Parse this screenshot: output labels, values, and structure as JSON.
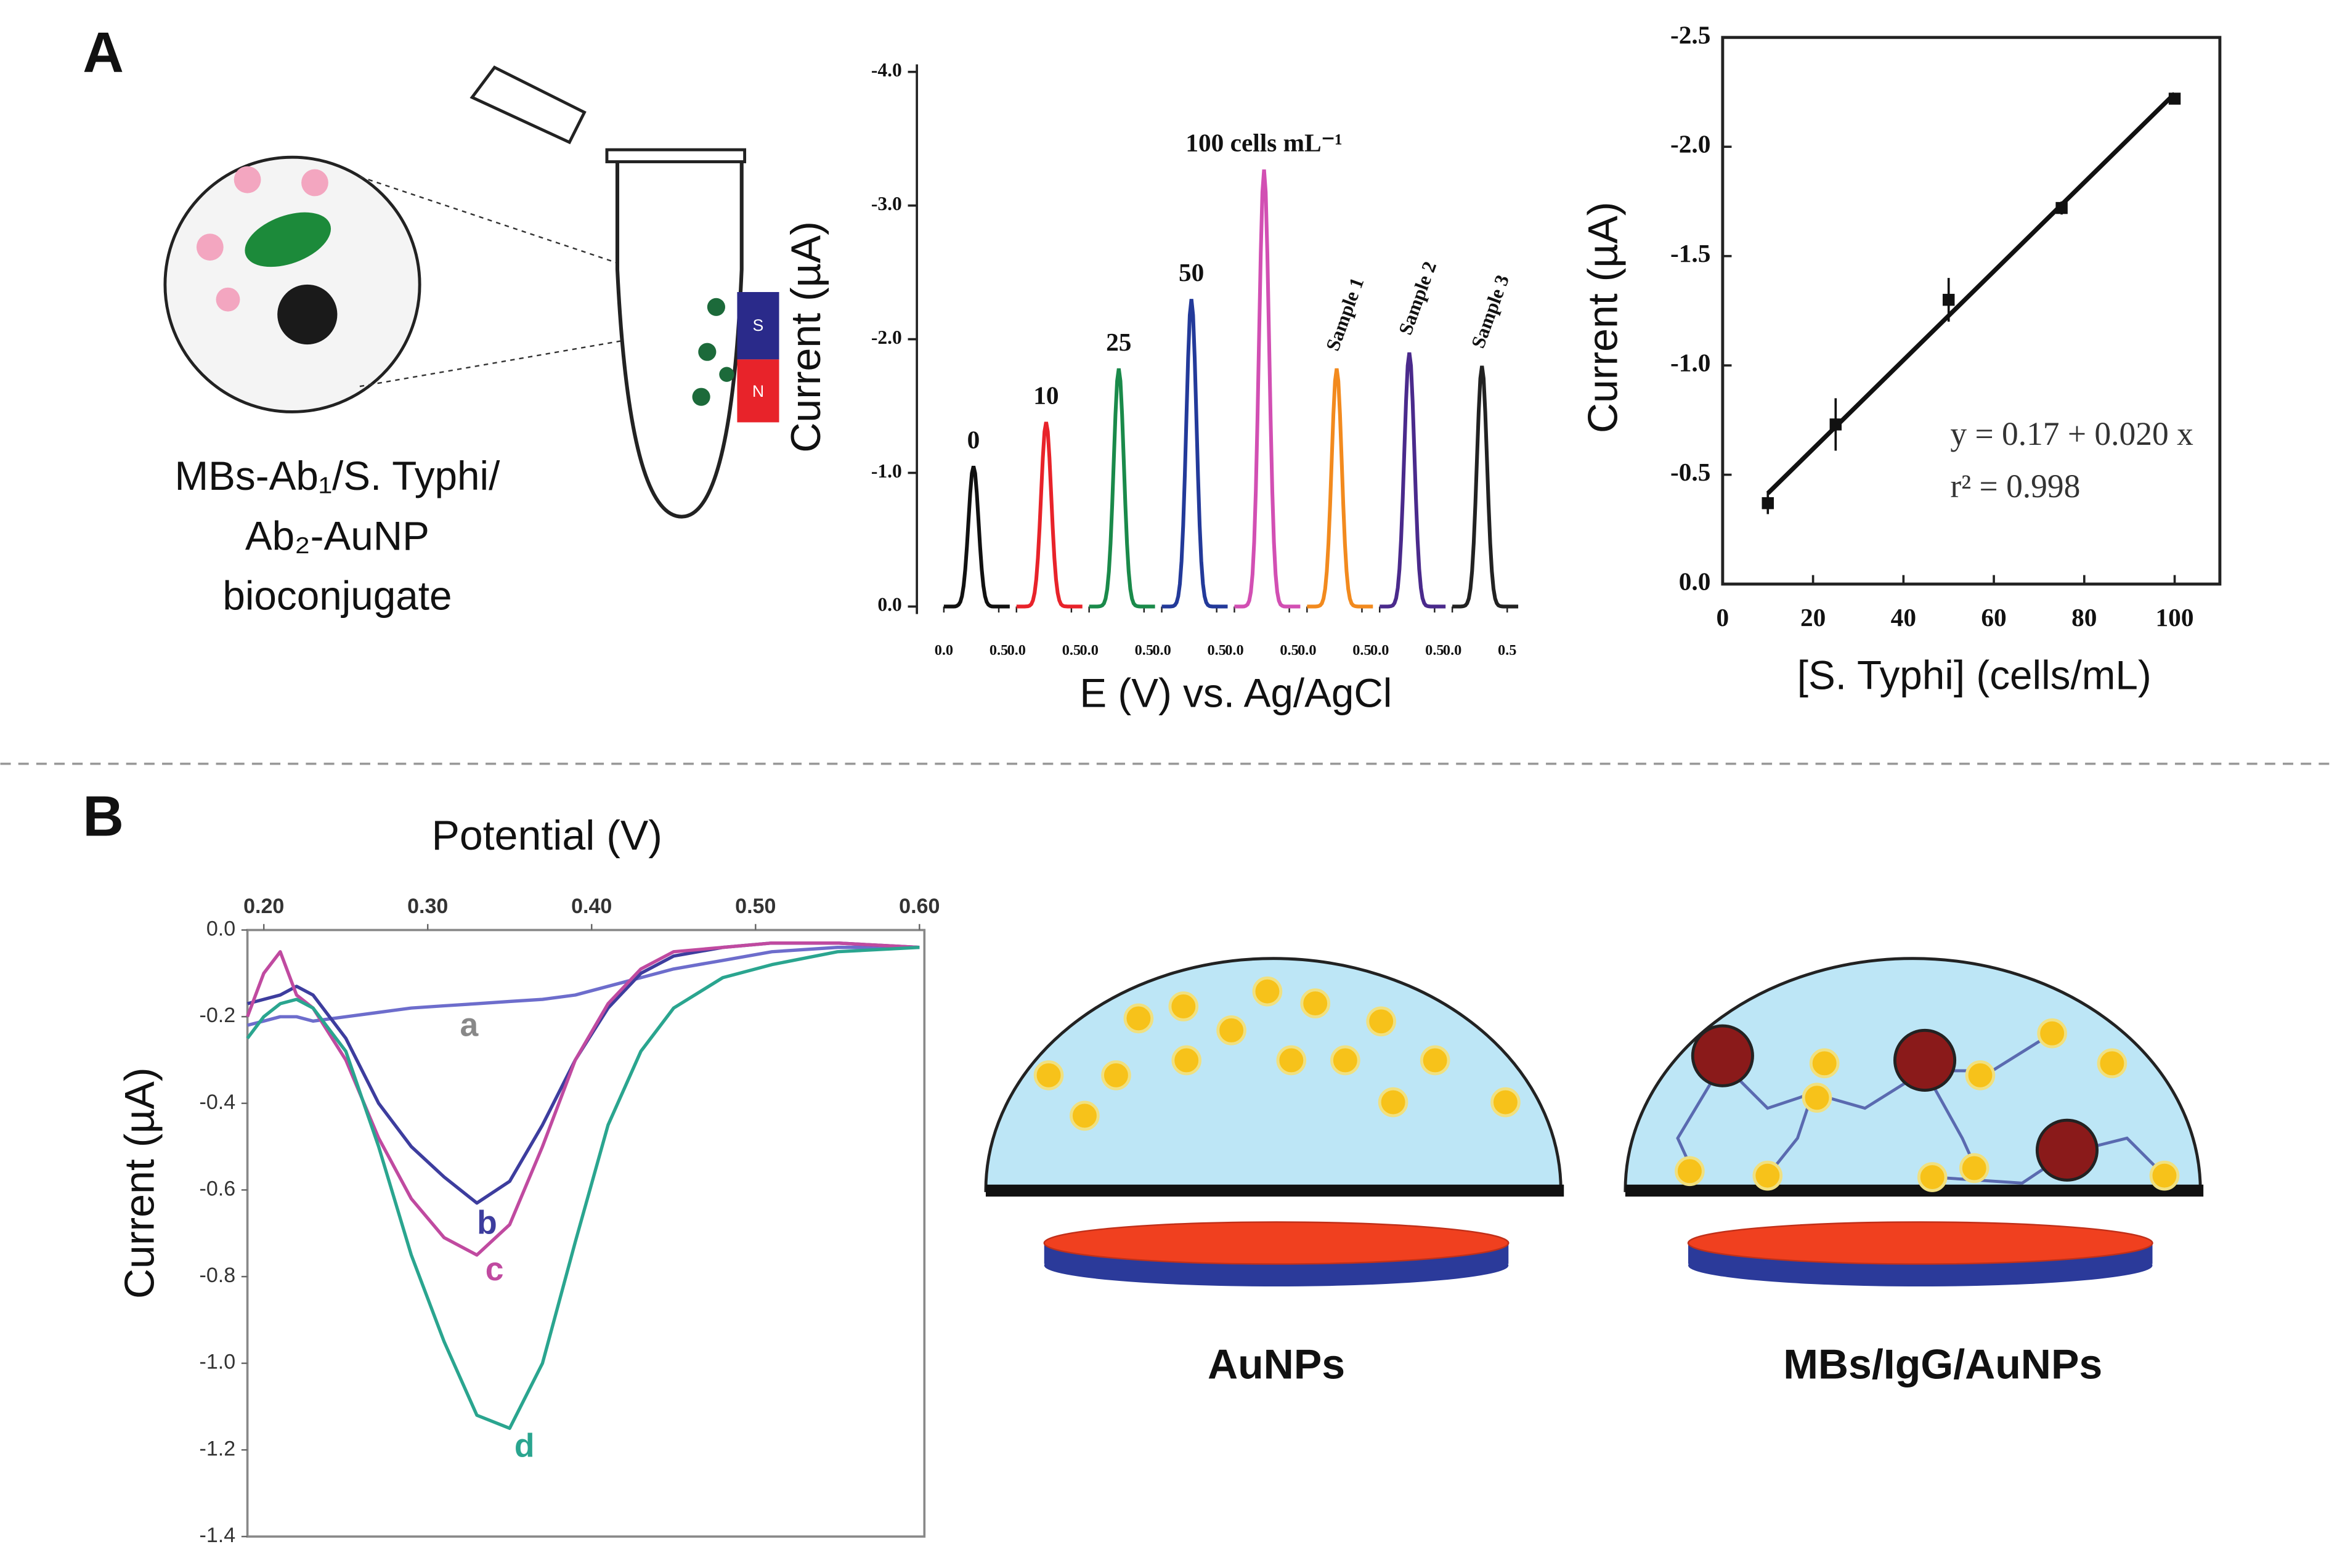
{
  "panel_labels": [
    "A",
    "B"
  ],
  "diagram_a": {
    "caption": [
      "MBs-Ab₁/S. Typhi/",
      "Ab₂-AuNP",
      "bioconjugate"
    ],
    "magnet_labels": [
      "S",
      "N"
    ]
  },
  "diagram_b": {
    "labels": [
      "AuNPs",
      "MBs/IgG/AuNPs"
    ]
  },
  "chart_data": [
    {
      "type": "peak",
      "categories": [
        "0",
        "10",
        "25",
        "50",
        "100 cells mL⁻¹",
        "Sample 1",
        "Sample 2",
        "Sample 3"
      ],
      "values": [
        -1.05,
        -1.38,
        -1.78,
        -2.3,
        -3.27,
        -1.78,
        -1.9,
        -1.8
      ],
      "colors": [
        "#111111",
        "#e8232a",
        "#1a8a4a",
        "#233a9a",
        "#d24fb3",
        "#f28a1e",
        "#4a2a8c",
        "#222222"
      ],
      "x_peak": 0.27,
      "xlim": [
        0,
        0.6
      ],
      "xticks": [
        {
          "value": 0,
          "label": "0.0"
        },
        {
          "value": 0.5,
          "label": "0.5"
        }
      ],
      "ylim": [
        0,
        -4
      ],
      "yticks": [
        {
          "value": 0,
          "label": "0.0"
        },
        {
          "value": -1,
          "label": "-1.0"
        },
        {
          "value": -2,
          "label": "-2.0"
        },
        {
          "value": -3,
          "label": "-3.0"
        },
        {
          "value": -4,
          "label": "-4.0"
        }
      ],
      "y_label": "Current (µA)",
      "x_label": "E (V) vs. Ag/AgCl"
    },
    {
      "type": "scatter",
      "x": [
        10,
        25,
        50,
        75,
        100
      ],
      "values": [
        -0.37,
        -0.73,
        -1.3,
        -1.72,
        -2.22
      ],
      "errors": [
        0.05,
        0.12,
        0.1,
        0.03,
        0.02
      ],
      "color": "#111111",
      "xlim": [
        0,
        110
      ],
      "xticks": [
        0,
        20,
        40,
        60,
        80,
        100
      ],
      "ylim": [
        0,
        -2.5
      ],
      "yticks": [
        {
          "value": 0,
          "label": "0.0"
        },
        {
          "value": -0.5,
          "label": "-0.5"
        },
        {
          "value": -1,
          "label": "-1.0"
        },
        {
          "value": -1.5,
          "label": "-1.5"
        },
        {
          "value": -2,
          "label": "-2.0"
        },
        {
          "value": -2.5,
          "label": "-2.5"
        }
      ],
      "y_label": "Current (µA)",
      "x_label": "[S. Typhi] (cells/mL)",
      "annotations": [
        "y = 0.17 + 0.020 x",
        "r² = 0.998"
      ]
    },
    {
      "type": "line",
      "x_axis": "top",
      "x": [
        0.19,
        0.2,
        0.21,
        0.22,
        0.23,
        0.25,
        0.27,
        0.29,
        0.31,
        0.33,
        0.35,
        0.37,
        0.39,
        0.41,
        0.43,
        0.45,
        0.48,
        0.51,
        0.55,
        0.6
      ],
      "series": [
        {
          "name": "a",
          "color": "#6d6dcc",
          "values": [
            -0.22,
            -0.21,
            -0.2,
            -0.2,
            -0.21,
            -0.2,
            -0.19,
            -0.18,
            -0.175,
            -0.17,
            -0.165,
            -0.16,
            -0.15,
            -0.13,
            -0.11,
            -0.09,
            -0.07,
            -0.05,
            -0.04,
            -0.04
          ]
        },
        {
          "name": "b",
          "color": "#3d3d9e",
          "values": [
            -0.17,
            -0.16,
            -0.15,
            -0.13,
            -0.15,
            -0.25,
            -0.4,
            -0.5,
            -0.57,
            -0.63,
            -0.58,
            -0.45,
            -0.3,
            -0.18,
            -0.1,
            -0.06,
            -0.04,
            -0.03,
            -0.03,
            -0.04
          ]
        },
        {
          "name": "c",
          "color": "#c04aa0",
          "values": [
            -0.2,
            -0.1,
            -0.05,
            -0.15,
            -0.18,
            -0.3,
            -0.48,
            -0.62,
            -0.71,
            -0.75,
            -0.68,
            -0.5,
            -0.3,
            -0.17,
            -0.09,
            -0.05,
            -0.04,
            -0.03,
            -0.03,
            -0.04
          ]
        },
        {
          "name": "d",
          "color": "#2aa58f",
          "values": [
            -0.25,
            -0.2,
            -0.17,
            -0.16,
            -0.18,
            -0.28,
            -0.5,
            -0.75,
            -0.95,
            -1.12,
            -1.15,
            -1.0,
            -0.72,
            -0.45,
            -0.28,
            -0.18,
            -0.11,
            -0.08,
            -0.05,
            -0.04
          ]
        }
      ],
      "xlim": [
        0.19,
        0.603
      ],
      "xticks": [
        {
          "value": 0.2,
          "label": "0.20"
        },
        {
          "value": 0.3,
          "label": "0.30"
        },
        {
          "value": 0.4,
          "label": "0.40"
        },
        {
          "value": 0.5,
          "label": "0.50"
        },
        {
          "value": 0.6,
          "label": "0.60"
        }
      ],
      "ylim": [
        0,
        -1.4
      ],
      "yticks": [
        {
          "value": 0,
          "label": "0.0"
        },
        {
          "value": -0.2,
          "label": "-0.2"
        },
        {
          "value": -0.4,
          "label": "-0.4"
        },
        {
          "value": -0.6,
          "label": "-0.6"
        },
        {
          "value": -0.8,
          "label": "-0.8"
        },
        {
          "value": -1,
          "label": "-1.0"
        },
        {
          "value": -1.2,
          "label": "-1.2"
        },
        {
          "value": -1.4,
          "label": "-1.4"
        }
      ],
      "x_label": "Potential (V)",
      "y_label": "Current (µA)"
    }
  ]
}
